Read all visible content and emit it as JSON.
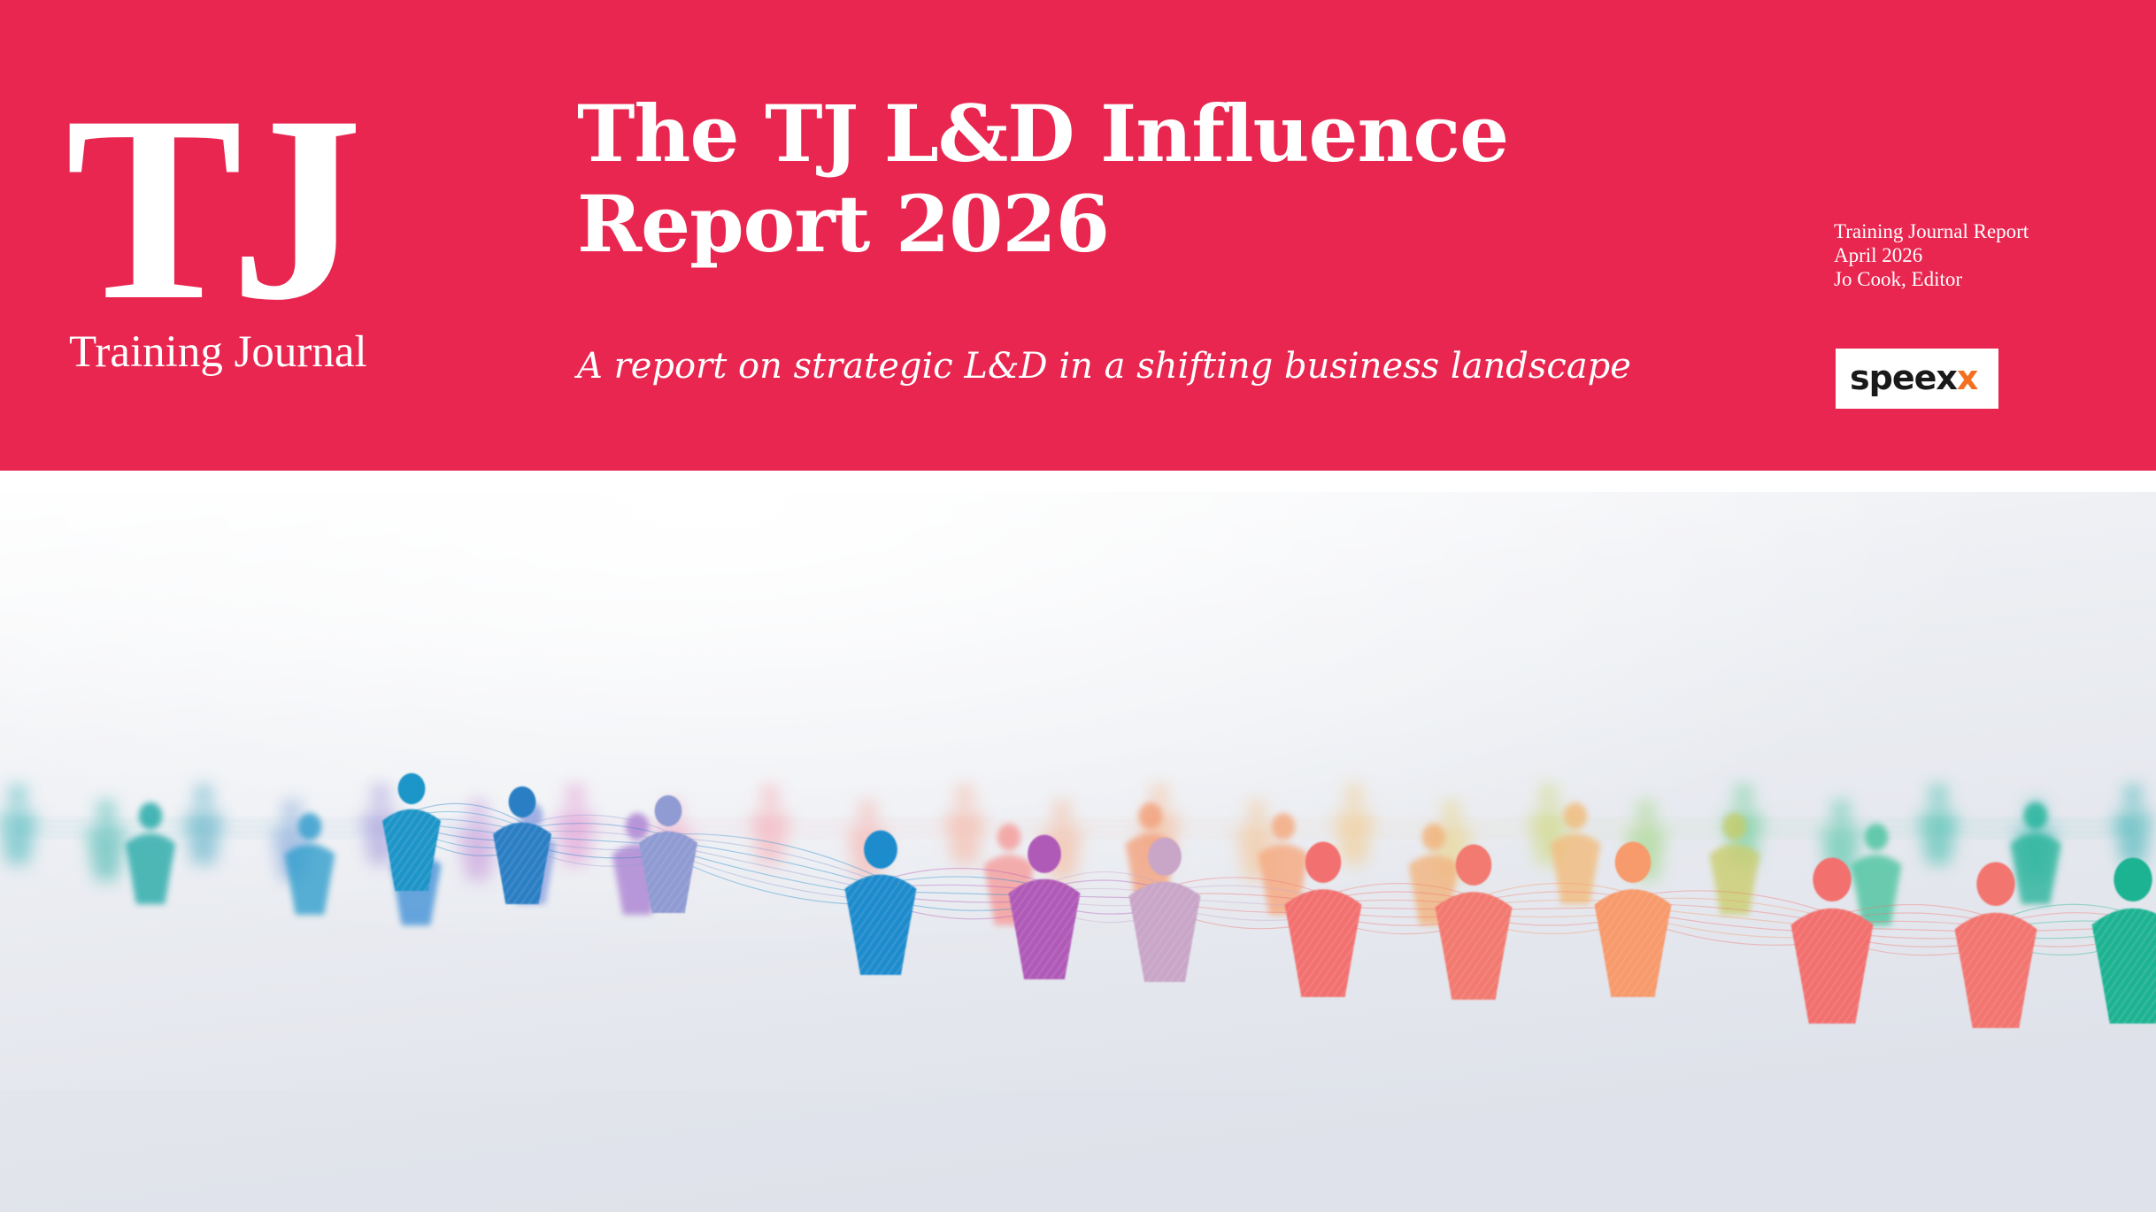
{
  "brand": {
    "logo_mark": "TJ",
    "logo_name": "Training Journal"
  },
  "report": {
    "title": "The TJ L&D Influence Report 2026",
    "subtitle": "A report on strategic L&D in a shifting business landscape"
  },
  "meta": {
    "publication": "Training Journal Report",
    "date": "April 2026",
    "author": "Jo Cook, Editor"
  },
  "sponsor": {
    "name_main": "speex",
    "name_accent": "x",
    "accent_color": "#f37021"
  },
  "colors": {
    "banner": "#e8264f",
    "text_on_banner": "#ffffff",
    "photo_background": "#e9ecf1"
  },
  "photo": {
    "subject": "figures-network-photo"
  }
}
